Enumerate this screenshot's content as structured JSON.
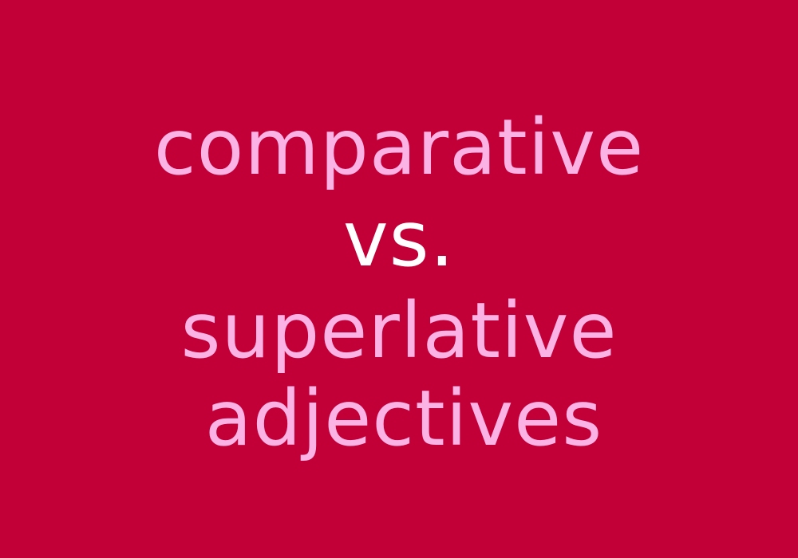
{
  "colors": {
    "background": "#c20037",
    "pink_text": "#fbb3e6",
    "white_text": "#ffffff"
  },
  "headline": {
    "line1": "comparative",
    "line2": "vs.",
    "line3": "superlative",
    "line4": "adjectives"
  }
}
